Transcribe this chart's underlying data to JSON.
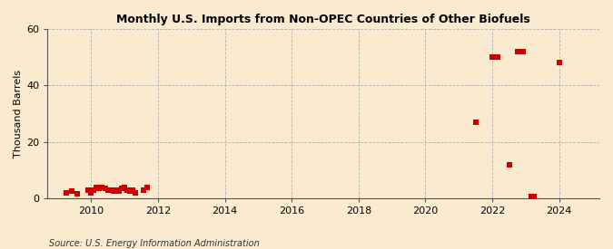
{
  "title": "Monthly U.S. Imports from Non-OPEC Countries of Other Biofuels",
  "ylabel": "Thousand Barrels",
  "source": "Source: U.S. Energy Information Administration",
  "background_color": "#faebd0",
  "plot_background_color": "#faebd0",
  "xlim": [
    2008.7,
    2025.2
  ],
  "ylim": [
    0,
    60
  ],
  "yticks": [
    0,
    20,
    40,
    60
  ],
  "xticks": [
    2010,
    2012,
    2014,
    2016,
    2018,
    2020,
    2022,
    2024
  ],
  "marker_color": "#cc0000",
  "marker_size": 5,
  "data_points": [
    [
      2009.25,
      2
    ],
    [
      2009.42,
      2.5
    ],
    [
      2009.58,
      1.5
    ],
    [
      2009.92,
      3
    ],
    [
      2010.0,
      2
    ],
    [
      2010.08,
      3
    ],
    [
      2010.17,
      4
    ],
    [
      2010.25,
      3.5
    ],
    [
      2010.33,
      4
    ],
    [
      2010.42,
      3.5
    ],
    [
      2010.5,
      3
    ],
    [
      2010.58,
      3
    ],
    [
      2010.67,
      2.5
    ],
    [
      2010.75,
      3
    ],
    [
      2010.83,
      2.5
    ],
    [
      2010.92,
      3.5
    ],
    [
      2011.0,
      4
    ],
    [
      2011.08,
      3
    ],
    [
      2011.17,
      2.5
    ],
    [
      2011.25,
      3
    ],
    [
      2011.33,
      2
    ],
    [
      2011.58,
      3
    ],
    [
      2011.67,
      4
    ],
    [
      2021.5,
      27
    ],
    [
      2022.0,
      50
    ],
    [
      2022.17,
      50
    ],
    [
      2022.5,
      12
    ],
    [
      2022.75,
      52
    ],
    [
      2022.92,
      52
    ],
    [
      2023.17,
      0.5
    ],
    [
      2023.25,
      0.5
    ],
    [
      2024.0,
      48
    ]
  ]
}
